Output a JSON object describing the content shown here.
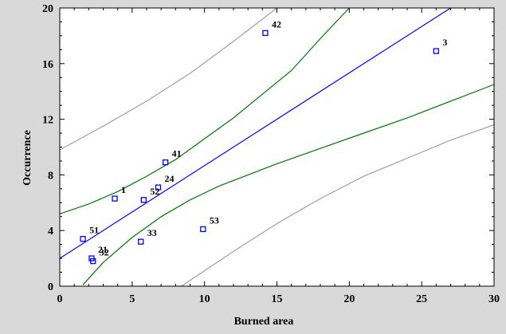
{
  "chart_data": {
    "type": "scatter",
    "xlabel": "Burned area",
    "ylabel": "Occurrence",
    "xlim": [
      0,
      30
    ],
    "ylim": [
      0,
      20
    ],
    "xticks": [
      0,
      5,
      10,
      15,
      20,
      25,
      30
    ],
    "yticks": [
      0,
      4,
      8,
      12,
      16,
      20
    ],
    "grid": false,
    "colors": {
      "background": "#d9d9d9",
      "plot_background": "#ffffff",
      "fit_line": "#0000ff",
      "confidence_band": "#007700",
      "prediction_band": "#a0a0a0",
      "points": "#0000ff"
    },
    "points": [
      {
        "label": "1",
        "x": 3.8,
        "y": 6.3
      },
      {
        "label": "3",
        "x": 26.0,
        "y": 16.9
      },
      {
        "label": "21",
        "x": 2.2,
        "y": 2.0
      },
      {
        "label": "24",
        "x": 6.8,
        "y": 7.1
      },
      {
        "label": "32",
        "x": 2.3,
        "y": 1.8
      },
      {
        "label": "33",
        "x": 5.6,
        "y": 3.2
      },
      {
        "label": "41",
        "x": 7.3,
        "y": 8.9
      },
      {
        "label": "42",
        "x": 14.2,
        "y": 18.2
      },
      {
        "label": "51",
        "x": 1.6,
        "y": 3.4
      },
      {
        "label": "52",
        "x": 5.8,
        "y": 6.2
      },
      {
        "label": "53",
        "x": 9.9,
        "y": 4.1
      }
    ],
    "fit_line": {
      "x": [
        0,
        27
      ],
      "y": [
        2.0,
        20.0
      ]
    },
    "confidence_upper": {
      "x": [
        0,
        2,
        4,
        6,
        8,
        10,
        12,
        14,
        16,
        18,
        20
      ],
      "y": [
        5.2,
        5.9,
        6.8,
        7.9,
        9.1,
        10.6,
        12.1,
        13.8,
        15.5,
        17.8,
        20.0
      ]
    },
    "confidence_lower": {
      "x": [
        1.6,
        3,
        5,
        7,
        9,
        11,
        13,
        15,
        18,
        21,
        24,
        27,
        30
      ],
      "y": [
        0.1,
        1.7,
        3.5,
        5.0,
        6.2,
        7.2,
        8.0,
        8.8,
        9.9,
        11.0,
        12.1,
        13.3,
        14.5
      ]
    },
    "prediction_upper": {
      "x": [
        0,
        3,
        6,
        9,
        12,
        15
      ],
      "y": [
        9.8,
        11.5,
        13.3,
        15.3,
        17.6,
        20.0
      ]
    },
    "prediction_lower": {
      "x": [
        8.4,
        12,
        15,
        18,
        21,
        24,
        27,
        30
      ],
      "y": [
        0.0,
        2.5,
        4.5,
        6.3,
        7.9,
        9.2,
        10.5,
        11.6
      ]
    }
  }
}
